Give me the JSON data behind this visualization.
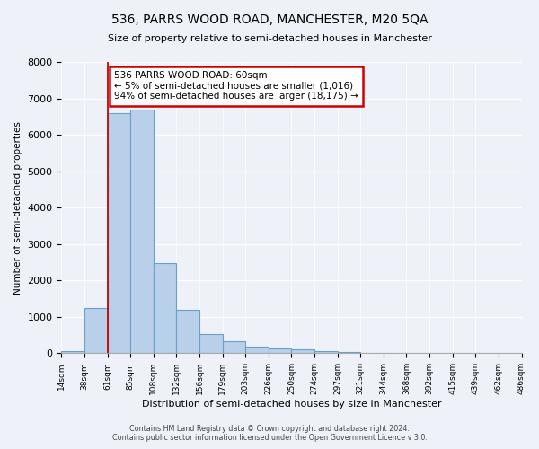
{
  "title": "536, PARRS WOOD ROAD, MANCHESTER, M20 5QA",
  "subtitle": "Size of property relative to semi-detached houses in Manchester",
  "xlabel": "Distribution of semi-detached houses by size in Manchester",
  "ylabel": "Number of semi-detached properties",
  "bar_values": [
    50,
    1250,
    6600,
    6700,
    2480,
    1200,
    530,
    330,
    190,
    120,
    100,
    50,
    30,
    10,
    5,
    2,
    1,
    0,
    0,
    0
  ],
  "bin_labels": [
    "14sqm",
    "38sqm",
    "61sqm",
    "85sqm",
    "108sqm",
    "132sqm",
    "156sqm",
    "179sqm",
    "203sqm",
    "226sqm",
    "250sqm",
    "274sqm",
    "297sqm",
    "321sqm",
    "344sqm",
    "368sqm",
    "392sqm",
    "415sqm",
    "439sqm",
    "462sqm",
    "486sqm"
  ],
  "bar_color": "#b8d0ea",
  "bar_edge_color": "#6a9fc8",
  "vline_color": "#cc0000",
  "annotation_box_color": "#ffffff",
  "annotation_box_edge_color": "#cc0000",
  "marker_label": "536 PARRS WOOD ROAD: 60sqm",
  "annotation_line1": "← 5% of semi-detached houses are smaller (1,016)",
  "annotation_line2": "94% of semi-detached houses are larger (18,175) →",
  "ylim": [
    0,
    8000
  ],
  "yticks": [
    0,
    1000,
    2000,
    3000,
    4000,
    5000,
    6000,
    7000,
    8000
  ],
  "background_color": "#eef2f8",
  "plot_bg_color": "#eef2f8",
  "footer_line1": "Contains HM Land Registry data © Crown copyright and database right 2024.",
  "footer_line2": "Contains public sector information licensed under the Open Government Licence v 3.0."
}
